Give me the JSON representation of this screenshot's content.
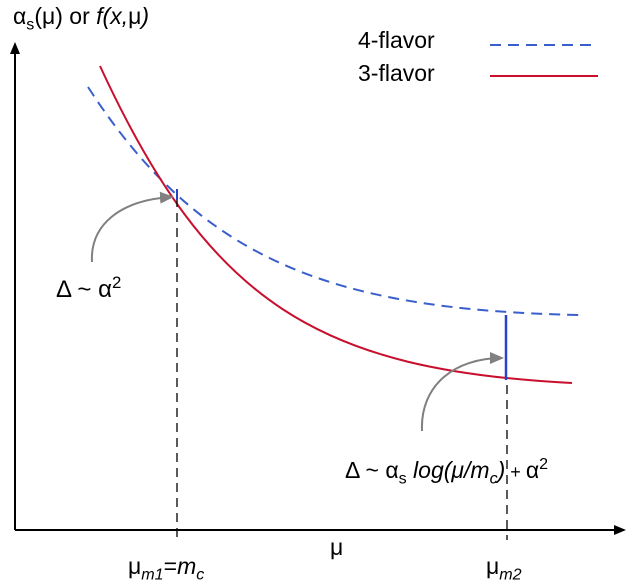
{
  "y_axis_label": {
    "alpha": "α",
    "alpha_sub": "s",
    "mu": "(μ)",
    "or": " or ",
    "f": "f(x,",
    "mu2": "μ",
    "close": ")"
  },
  "legend": {
    "items": [
      {
        "label": "4-flavor",
        "color": "#3a5fcd",
        "style": "dashed"
      },
      {
        "label": "3-flavor",
        "color": "#c8102e",
        "style": "solid"
      }
    ]
  },
  "annotations": {
    "delta1": {
      "delta": "Δ",
      "tilde": " ~ ",
      "alpha": "α",
      "pow": "2"
    },
    "delta2": {
      "delta": "Δ",
      "tilde": " ~ ",
      "alpha": "α",
      "alpha_sub": "s",
      "log": " log(μ/",
      "m": "m",
      "m_sub": "c",
      "close": ")",
      "plus": " + ",
      "alpha2": "α",
      "pow": "2"
    }
  },
  "x_axis_label": "μ",
  "ticks": {
    "m1": {
      "mu": "μ",
      "sub": "m1",
      "eq": "=",
      "m": "m",
      "m_sub": "c"
    },
    "m2": {
      "mu": "μ",
      "sub": "m2"
    }
  },
  "colors": {
    "four_flavor": "#3a5fcd",
    "three_flavor": "#c8102e",
    "axis": "#000000",
    "arrow": "#808080",
    "jump": "#2845c8"
  }
}
